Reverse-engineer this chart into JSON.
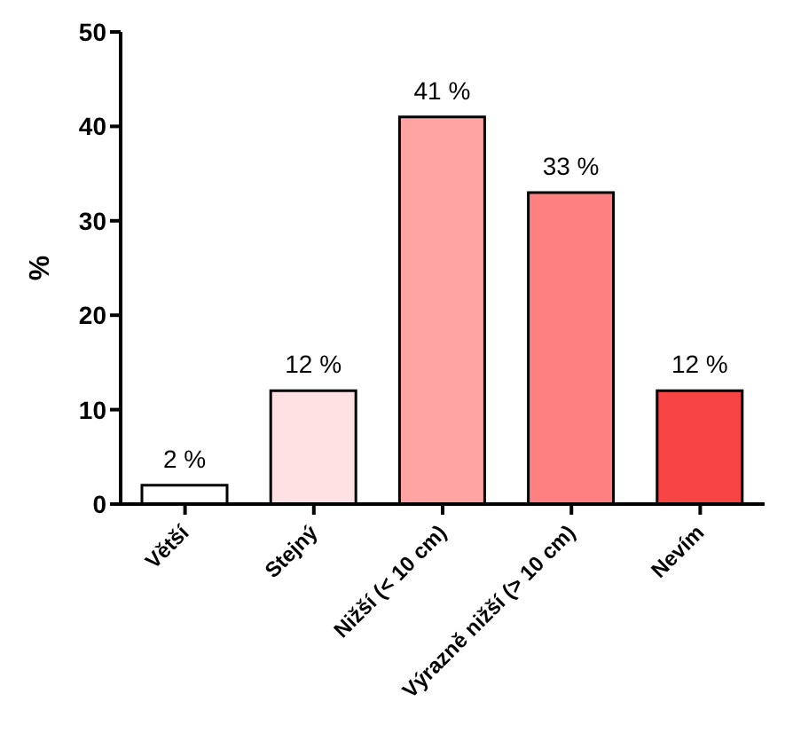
{
  "chart_data": {
    "type": "bar",
    "ylabel": "%",
    "categories": [
      "Větší",
      "Stejný",
      "Nižší (< 10 cm)",
      "Výrazně nižší (> 10 cm)",
      "Nevím"
    ],
    "values": [
      2,
      12,
      41,
      33,
      12
    ],
    "colors": [
      "#ffffff",
      "#ffe0e3",
      "#ffa3a3",
      "#ff8080",
      "#f84444"
    ],
    "value_labels": [
      "2 %",
      "12 %",
      "41 %",
      "33 %",
      "12 %"
    ],
    "ylim": [
      0,
      50
    ],
    "yticks": [
      0,
      10,
      20,
      30,
      40,
      50
    ],
    "grid": false,
    "legend": false
  }
}
